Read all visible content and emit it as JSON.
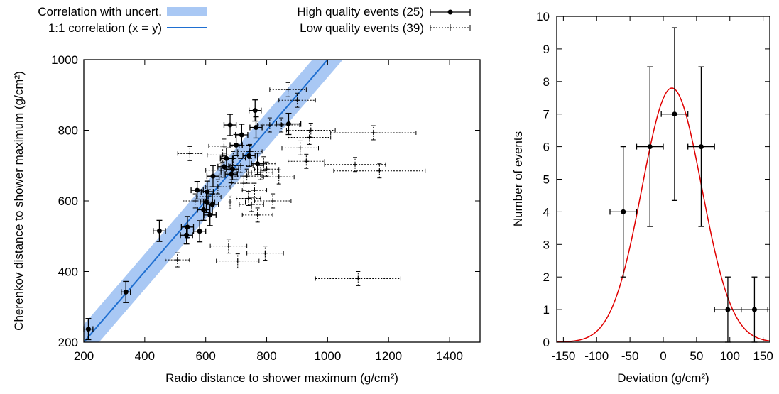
{
  "colors": {
    "band": "#a9c8f4",
    "line11": "#1f6fd1",
    "fit": "#e00000",
    "marker": "#000000"
  },
  "chart_data": [
    {
      "type": "scatter",
      "xlabel": "Radio distance to shower maximum (g/cm²)",
      "ylabel": "Cherenkov distance to shower maximum (g/cm²)",
      "xlim": [
        200,
        1500
      ],
      "ylim": [
        200,
        1000
      ],
      "xticks": [
        200,
        400,
        600,
        800,
        1000,
        1200,
        1400
      ],
      "yticks": [
        200,
        400,
        600,
        800,
        1000
      ],
      "grid": false,
      "legend": {
        "band": "Correlation with uncert.",
        "line11": "1:1 correlation (x = y)",
        "high": "High quality events (25)",
        "low": "Low quality events (39)"
      },
      "band": {
        "intercept_low": -50,
        "intercept_high": 50,
        "slope": 1
      },
      "series": [
        {
          "name": "High quality events (25)",
          "marker": "dot",
          "points": [
            {
              "x": 215,
              "y": 237,
              "xe": 15,
              "ye": 30
            },
            {
              "x": 338,
              "y": 342,
              "xe": 15,
              "ye": 30
            },
            {
              "x": 448,
              "y": 515,
              "xe": 20,
              "ye": 30
            },
            {
              "x": 537,
              "y": 503,
              "xe": 20,
              "ye": 25
            },
            {
              "x": 540,
              "y": 526,
              "xe": 20,
              "ye": 30
            },
            {
              "x": 580,
              "y": 514,
              "xe": 20,
              "ye": 30
            },
            {
              "x": 572,
              "y": 630,
              "xe": 20,
              "ye": 25
            },
            {
              "x": 593,
              "y": 575,
              "xe": 20,
              "ye": 30
            },
            {
              "x": 602,
              "y": 597,
              "xe": 20,
              "ye": 30
            },
            {
              "x": 605,
              "y": 626,
              "xe": 20,
              "ye": 30
            },
            {
              "x": 614,
              "y": 560,
              "xe": 20,
              "ye": 30
            },
            {
              "x": 622,
              "y": 590,
              "xe": 20,
              "ye": 30
            },
            {
              "x": 624,
              "y": 670,
              "xe": 20,
              "ye": 30
            },
            {
              "x": 660,
              "y": 697,
              "xe": 20,
              "ye": 30
            },
            {
              "x": 668,
              "y": 720,
              "xe": 20,
              "ye": 30
            },
            {
              "x": 680,
              "y": 815,
              "xe": 20,
              "ye": 30
            },
            {
              "x": 684,
              "y": 676,
              "xe": 20,
              "ye": 25
            },
            {
              "x": 688,
              "y": 690,
              "xe": 20,
              "ye": 30
            },
            {
              "x": 700,
              "y": 758,
              "xe": 20,
              "ye": 30
            },
            {
              "x": 718,
              "y": 787,
              "xe": 20,
              "ye": 30
            },
            {
              "x": 742,
              "y": 728,
              "xe": 20,
              "ye": 30
            },
            {
              "x": 762,
              "y": 856,
              "xe": 20,
              "ye": 30
            },
            {
              "x": 765,
              "y": 808,
              "xe": 20,
              "ye": 30
            },
            {
              "x": 770,
              "y": 705,
              "xe": 20,
              "ye": 30
            },
            {
              "x": 872,
              "y": 818,
              "xe": 40,
              "ye": 30
            }
          ]
        },
        {
          "name": "Low quality events (39)",
          "marker": "plus",
          "points": [
            {
              "x": 507,
              "y": 433,
              "xe": 40,
              "ye": 20
            },
            {
              "x": 548,
              "y": 734,
              "xe": 40,
              "ye": 20
            },
            {
              "x": 565,
              "y": 600,
              "xe": 40,
              "ye": 20
            },
            {
              "x": 610,
              "y": 612,
              "xe": 40,
              "ye": 20
            },
            {
              "x": 640,
              "y": 640,
              "xe": 40,
              "ye": 20
            },
            {
              "x": 650,
              "y": 687,
              "xe": 50,
              "ye": 20
            },
            {
              "x": 655,
              "y": 730,
              "xe": 50,
              "ye": 20
            },
            {
              "x": 660,
              "y": 755,
              "xe": 50,
              "ye": 20
            },
            {
              "x": 675,
              "y": 472,
              "xe": 60,
              "ye": 20
            },
            {
              "x": 680,
              "y": 597,
              "xe": 50,
              "ye": 20
            },
            {
              "x": 690,
              "y": 720,
              "xe": 40,
              "ye": 20
            },
            {
              "x": 700,
              "y": 680,
              "xe": 50,
              "ye": 20
            },
            {
              "x": 705,
              "y": 430,
              "xe": 70,
              "ye": 20
            },
            {
              "x": 715,
              "y": 700,
              "xe": 40,
              "ye": 20
            },
            {
              "x": 725,
              "y": 650,
              "xe": 40,
              "ye": 20
            },
            {
              "x": 735,
              "y": 670,
              "xe": 50,
              "ye": 20
            },
            {
              "x": 740,
              "y": 607,
              "xe": 40,
              "ye": 20
            },
            {
              "x": 745,
              "y": 740,
              "xe": 40,
              "ye": 20
            },
            {
              "x": 750,
              "y": 590,
              "xe": 40,
              "ye": 20
            },
            {
              "x": 760,
              "y": 630,
              "xe": 40,
              "ye": 20
            },
            {
              "x": 770,
              "y": 560,
              "xe": 50,
              "ye": 20
            },
            {
              "x": 780,
              "y": 680,
              "xe": 40,
              "ye": 20
            },
            {
              "x": 790,
              "y": 705,
              "xe": 40,
              "ye": 20
            },
            {
              "x": 795,
              "y": 452,
              "xe": 60,
              "ye": 20
            },
            {
              "x": 800,
              "y": 690,
              "xe": 40,
              "ye": 20
            },
            {
              "x": 810,
              "y": 815,
              "xe": 40,
              "ye": 20
            },
            {
              "x": 820,
              "y": 600,
              "xe": 60,
              "ye": 20
            },
            {
              "x": 840,
              "y": 668,
              "xe": 50,
              "ye": 20
            },
            {
              "x": 848,
              "y": 815,
              "xe": 60,
              "ye": 20
            },
            {
              "x": 870,
              "y": 915,
              "xe": 60,
              "ye": 20
            },
            {
              "x": 900,
              "y": 885,
              "xe": 60,
              "ye": 20
            },
            {
              "x": 910,
              "y": 750,
              "xe": 60,
              "ye": 20
            },
            {
              "x": 930,
              "y": 712,
              "xe": 60,
              "ye": 20
            },
            {
              "x": 940,
              "y": 780,
              "xe": 70,
              "ye": 20
            },
            {
              "x": 945,
              "y": 800,
              "xe": 80,
              "ye": 20
            },
            {
              "x": 1090,
              "y": 703,
              "xe": 100,
              "ye": 20
            },
            {
              "x": 1100,
              "y": 380,
              "xe": 140,
              "ye": 20
            },
            {
              "x": 1150,
              "y": 793,
              "xe": 140,
              "ye": 20
            },
            {
              "x": 1170,
              "y": 685,
              "xe": 150,
              "ye": 20
            }
          ]
        }
      ]
    },
    {
      "type": "scatter",
      "xlabel": "Deviation (g/cm²)",
      "ylabel": "Number of events",
      "xlim": [
        -160,
        160
      ],
      "ylim": [
        0,
        10
      ],
      "xticks": [
        -150,
        -100,
        -50,
        0,
        50,
        100,
        150
      ],
      "yticks": [
        0,
        1,
        2,
        3,
        4,
        5,
        6,
        7,
        8,
        9,
        10
      ],
      "grid": false,
      "series": [
        {
          "name": "",
          "marker": "dot",
          "points": [
            {
              "x": -60,
              "y": 4,
              "xe": 20,
              "ye": 2
            },
            {
              "x": -20,
              "y": 6,
              "xe": 20,
              "ye": 2.45
            },
            {
              "x": 17,
              "y": 7,
              "xe": 20,
              "ye": 2.65
            },
            {
              "x": 57,
              "y": 6,
              "xe": 20,
              "ye": 2.45
            },
            {
              "x": 97,
              "y": 1,
              "xe": 20,
              "ye": 1
            },
            {
              "x": 137,
              "y": 1,
              "xe": 20,
              "ye": 1
            }
          ]
        }
      ],
      "fit": {
        "type": "gaussian",
        "amplitude": 7.8,
        "mean": 13,
        "sigma": 45
      }
    }
  ]
}
